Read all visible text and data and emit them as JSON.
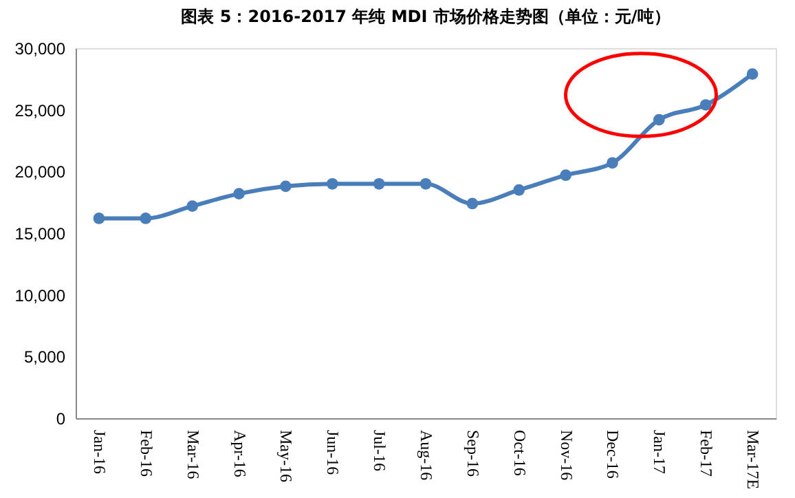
{
  "chart_data": {
    "type": "line",
    "title": "图表 5：2016-2017 年纯 MDI 市场价格走势图（单位：元/吨）",
    "categories": [
      "Jan-16",
      "Feb-16",
      "Mar-16",
      "Apr-16",
      "May-16",
      "Jun-16",
      "Jul-16",
      "Aug-16",
      "Sep-16",
      "Oct-16",
      "Nov-16",
      "Dec-16",
      "Jan-17",
      "Feb-17",
      "Mar-17E"
    ],
    "series": [
      {
        "color": "#4a7ebb",
        "values": [
          16200,
          16200,
          17200,
          18200,
          18800,
          19000,
          19000,
          19000,
          17400,
          18500,
          19700,
          20700,
          24200,
          25400,
          27900
        ]
      }
    ],
    "ylim": [
      0,
      30000
    ],
    "yticks": [
      {
        "value": 0,
        "label": "0"
      },
      {
        "value": 5000,
        "label": "5,000"
      },
      {
        "value": 10000,
        "label": "10,000"
      },
      {
        "value": 15000,
        "label": "15,000"
      },
      {
        "value": 20000,
        "label": "20,000"
      },
      {
        "value": 25000,
        "label": "25,000"
      },
      {
        "value": 30000,
        "label": "30,000"
      }
    ],
    "grid": false,
    "legend": false,
    "marker": "circle",
    "line_style": "solid"
  }
}
